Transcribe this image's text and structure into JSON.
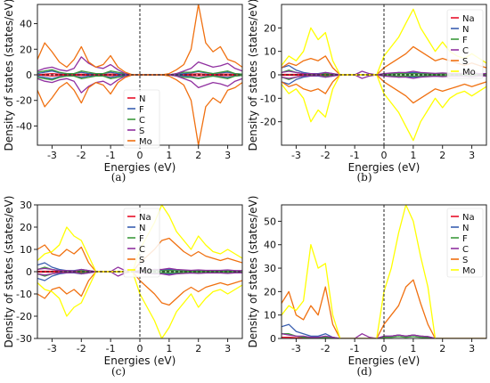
{
  "chart_data": [
    {
      "type": "line",
      "xlabel": "Energies (eV)",
      "ylabel": "Density of states (states/eV)",
      "xlim": [
        -3.5,
        3.5
      ],
      "ylim": [
        -55,
        55
      ],
      "xticks": [
        "-3",
        "-2",
        "-1",
        "0",
        "1",
        "2",
        "3"
      ],
      "yticks": [
        "40",
        "20",
        "0",
        "-20",
        "-40"
      ],
      "ytick_values": [
        40,
        20,
        0,
        -20,
        -40
      ],
      "legend_position": "lower-middle",
      "caption": "(a)",
      "x": [
        -3.5,
        -3.25,
        -3.0,
        -2.75,
        -2.5,
        -2.25,
        -2.0,
        -1.75,
        -1.5,
        -1.25,
        -1.0,
        -0.75,
        -0.5,
        -0.25,
        0.0,
        0.25,
        0.5,
        0.75,
        1.0,
        1.25,
        1.5,
        1.75,
        2.0,
        2.25,
        2.5,
        2.75,
        3.0,
        3.25,
        3.5
      ],
      "series": [
        {
          "name": "N",
          "color": "#e8102a",
          "up": [
            0,
            0.5,
            1,
            0.5,
            0.2,
            0.2,
            0.5,
            0.3,
            0.2,
            0.3,
            0.6,
            0.3,
            0.1,
            0,
            0,
            0,
            0,
            0,
            0,
            0.2,
            0.3,
            0.5,
            0.8,
            0.4,
            0.3,
            0.5,
            0.6,
            0.3,
            0.1
          ]
        },
        {
          "name": "F",
          "color": "#3a5fb0",
          "up": [
            1,
            2,
            3,
            1.5,
            1,
            1,
            2,
            1,
            1,
            1,
            2,
            1,
            0.5,
            0,
            0,
            0,
            0,
            0,
            0,
            0.5,
            1,
            1.5,
            2.5,
            1.5,
            1,
            1.5,
            2,
            1,
            0.5
          ]
        },
        {
          "name": "C",
          "color": "#3c9a3c",
          "up": [
            2,
            3,
            4,
            2,
            1,
            1,
            3,
            2,
            1,
            1,
            3,
            2,
            1,
            0,
            0,
            0,
            0,
            0,
            0,
            1,
            2,
            2,
            3,
            2,
            1,
            2,
            3,
            1,
            0.5
          ]
        },
        {
          "name": "S",
          "color": "#9030a0",
          "up": [
            3,
            5,
            6,
            4,
            3,
            5,
            14,
            9,
            6,
            5,
            8,
            4,
            1,
            0,
            0,
            0,
            0,
            0,
            0,
            1,
            3,
            5,
            10,
            8,
            6,
            7,
            9,
            5,
            3
          ]
        },
        {
          "name": "Mo",
          "color": "#f07010",
          "up": [
            12,
            25,
            18,
            10,
            6,
            12,
            22,
            10,
            6,
            8,
            15,
            6,
            2,
            0,
            0,
            0,
            0,
            0,
            1,
            4,
            8,
            20,
            55,
            25,
            18,
            22,
            12,
            10,
            6
          ]
        }
      ]
    },
    {
      "type": "line",
      "xlabel": "Energies (eV)",
      "ylabel": "Density of states (states/eV)",
      "xlim": [
        -3.5,
        3.5
      ],
      "ylim": [
        -30,
        30
      ],
      "xticks": [
        "-3",
        "-2",
        "-1",
        "0",
        "1",
        "2",
        "3"
      ],
      "yticks": [
        "20",
        "10",
        "0",
        "-10",
        "-20"
      ],
      "ytick_values": [
        20,
        10,
        0,
        -10,
        -20
      ],
      "legend_position": "top-right",
      "caption": "(b)",
      "x": [
        -3.5,
        -3.25,
        -3.0,
        -2.75,
        -2.5,
        -2.25,
        -2.0,
        -1.75,
        -1.5,
        -1.25,
        -1.0,
        -0.75,
        -0.5,
        -0.25,
        0.0,
        0.25,
        0.5,
        0.75,
        1.0,
        1.25,
        1.5,
        1.75,
        2.0,
        2.25,
        2.5,
        2.75,
        3.0,
        3.25,
        3.5
      ],
      "series": [
        {
          "name": "Na",
          "color": "#e8102a",
          "up": [
            0.2,
            0.2,
            0.2,
            0.2,
            0.1,
            0.1,
            0.1,
            0.1,
            0,
            0,
            0,
            0,
            0,
            0,
            0.3,
            0.5,
            0.8,
            0.6,
            0.8,
            0.6,
            0.5,
            0.5,
            0.5,
            0.4,
            0.4,
            0.4,
            0.3,
            0.3,
            0.3
          ]
        },
        {
          "name": "N",
          "color": "#3a5fb0",
          "up": [
            3,
            4,
            2,
            1,
            0.5,
            0.5,
            1,
            0.5,
            0,
            0,
            0,
            0,
            0,
            0,
            0.5,
            0.5,
            1,
            0.8,
            1,
            0.8,
            0.6,
            0.5,
            0.6,
            0.5,
            0.4,
            0.5,
            0.5,
            0.4,
            0.3
          ]
        },
        {
          "name": "F",
          "color": "#3c9a3c",
          "up": [
            1,
            2,
            1,
            0.5,
            0.3,
            0.3,
            0.5,
            0.3,
            0,
            0,
            0,
            0,
            0,
            0,
            0.3,
            0.3,
            0.5,
            0.4,
            0.5,
            0.4,
            0.3,
            0.3,
            0.3,
            0.3,
            0.2,
            0.3,
            0.3,
            0.2,
            0.2
          ]
        },
        {
          "name": "C",
          "color": "#9030a0",
          "up": [
            1,
            1.5,
            1,
            0.5,
            0.5,
            0.3,
            1,
            0.5,
            0,
            0,
            0,
            1.5,
            0.5,
            0,
            0.5,
            0.8,
            1,
            1,
            1.5,
            1,
            0.8,
            0.6,
            0.8,
            0.6,
            0.6,
            0.6,
            0.8,
            0.5,
            0.5
          ]
        },
        {
          "name": "S",
          "color": "#f07010",
          "up": [
            3,
            5,
            4,
            6,
            7,
            6,
            8,
            3,
            0,
            0,
            0,
            0,
            0,
            0,
            3,
            5,
            7,
            9,
            12,
            10,
            8,
            6,
            7,
            6,
            5,
            4,
            5,
            4,
            3
          ]
        },
        {
          "name": "Mo",
          "color": "#ffff00",
          "up": [
            4,
            8,
            6,
            10,
            20,
            15,
            18,
            6,
            0,
            0,
            0,
            0,
            0,
            0,
            8,
            12,
            16,
            22,
            28,
            20,
            15,
            10,
            14,
            10,
            8,
            7,
            9,
            7,
            5
          ]
        }
      ]
    },
    {
      "type": "line",
      "xlabel": "Energies (eV)",
      "ylabel": "Density of states (states/eV)",
      "xlim": [
        -3.5,
        3.5
      ],
      "ylim": [
        -30,
        30
      ],
      "xticks": [
        "-3",
        "-2",
        "-1",
        "0",
        "1",
        "2",
        "3"
      ],
      "yticks": [
        "30",
        "20",
        "10",
        "0",
        "-10",
        "-20",
        "-30"
      ],
      "ytick_values": [
        30,
        20,
        10,
        0,
        -10,
        -20,
        -30
      ],
      "legend_position": "top-middle",
      "caption": "(c)",
      "x": [
        -3.5,
        -3.25,
        -3.0,
        -2.75,
        -2.5,
        -2.25,
        -2.0,
        -1.75,
        -1.5,
        -1.25,
        -1.0,
        -0.75,
        -0.5,
        -0.25,
        0.0,
        0.25,
        0.5,
        0.75,
        1.0,
        1.25,
        1.5,
        1.75,
        2.0,
        2.25,
        2.5,
        2.75,
        3.0,
        3.25,
        3.5
      ],
      "series": [
        {
          "name": "Na",
          "color": "#e8102a",
          "up": [
            0.2,
            0.2,
            0.2,
            0.2,
            0.1,
            0.1,
            0.1,
            0,
            0,
            0,
            0,
            0,
            0,
            0,
            0.3,
            0.5,
            0.8,
            0.6,
            0.8,
            0.6,
            0.5,
            0.5,
            0.5,
            0.4,
            0.4,
            0.4,
            0.3,
            0.3,
            0.3
          ]
        },
        {
          "name": "N",
          "color": "#3a5fb0",
          "up": [
            3,
            4,
            2,
            1,
            0.5,
            0.5,
            1,
            0.5,
            0,
            0,
            0,
            0,
            0,
            0,
            0.5,
            0.5,
            1,
            0.8,
            1,
            0.8,
            0.6,
            0.5,
            0.6,
            0.5,
            0.4,
            0.5,
            0.5,
            0.4,
            0.3
          ]
        },
        {
          "name": "F",
          "color": "#3c9a3c",
          "up": [
            1,
            2,
            1,
            0.5,
            0.3,
            0.3,
            0.5,
            0.3,
            0,
            0,
            0,
            0,
            0,
            0,
            0.3,
            0.3,
            0.5,
            0.4,
            0.5,
            0.4,
            0.3,
            0.3,
            0.3,
            0.3,
            0.2,
            0.3,
            0.3,
            0.2,
            0.2
          ]
        },
        {
          "name": "C",
          "color": "#9030a0",
          "up": [
            1,
            1.5,
            1,
            0.5,
            0.5,
            0.3,
            1,
            0.5,
            0,
            0,
            0,
            2,
            0.5,
            0,
            0.5,
            0.8,
            1,
            1,
            1.5,
            1,
            0.8,
            0.6,
            0.8,
            0.6,
            0.6,
            0.6,
            0.8,
            0.5,
            0.5
          ]
        },
        {
          "name": "S",
          "color": "#f07010",
          "up": [
            10,
            12,
            8,
            7,
            10,
            8,
            11,
            4,
            0,
            0,
            0,
            0,
            0,
            0,
            4,
            7,
            10,
            14,
            15,
            12,
            9,
            7,
            9,
            7,
            6,
            5,
            6,
            5,
            4
          ]
        },
        {
          "name": "Mo",
          "color": "#ffff00",
          "up": [
            5,
            8,
            9,
            12,
            20,
            16,
            14,
            7,
            0,
            0,
            0,
            0,
            0,
            0,
            10,
            16,
            22,
            30,
            25,
            18,
            14,
            10,
            16,
            12,
            9,
            8,
            10,
            8,
            6
          ]
        }
      ]
    },
    {
      "type": "line",
      "xlabel": "Energies (eV)",
      "ylabel": "Density of states (states/eV)",
      "xlim": [
        -3.5,
        3.5
      ],
      "ylim": [
        0,
        57
      ],
      "xticks": [
        "-3",
        "-2",
        "-1",
        "0",
        "1",
        "2",
        "3"
      ],
      "yticks": [
        "50",
        "40",
        "30",
        "20",
        "10",
        "0"
      ],
      "ytick_values": [
        50,
        40,
        30,
        20,
        10,
        0
      ],
      "legend_position": "top-right",
      "caption": "(d)",
      "x": [
        -3.5,
        -3.25,
        -3.0,
        -2.75,
        -2.5,
        -2.25,
        -2.0,
        -1.75,
        -1.5,
        -1.25,
        -1.0,
        -0.75,
        -0.5,
        -0.25,
        0.0,
        0.25,
        0.5,
        0.75,
        1.0,
        1.25,
        1.5,
        1.75,
        2.0,
        2.25,
        2.5,
        2.75,
        3.0,
        3.25,
        3.5
      ],
      "series": [
        {
          "name": "Na",
          "color": "#e8102a",
          "up": [
            0.5,
            0.5,
            0.3,
            0.2,
            0.2,
            0.2,
            0.1,
            0,
            0,
            0,
            0,
            0,
            0,
            0,
            0.5,
            1,
            1.5,
            1,
            1.5,
            1,
            0.8,
            0,
            0,
            0,
            0,
            0,
            0,
            0,
            0
          ]
        },
        {
          "name": "N",
          "color": "#3a5fb0",
          "up": [
            5,
            6,
            3,
            2,
            1,
            1,
            2,
            0.5,
            0,
            0,
            0,
            0,
            0,
            0,
            1,
            1,
            1.5,
            1,
            1.5,
            1,
            0.8,
            0,
            0,
            0,
            0,
            0,
            0,
            0,
            0
          ]
        },
        {
          "name": "F",
          "color": "#3c9a3c",
          "up": [
            2,
            2,
            1,
            0.5,
            0.5,
            0.3,
            0.5,
            0.3,
            0,
            0,
            0,
            0,
            0,
            0,
            0.5,
            0.5,
            0.8,
            0.5,
            0.8,
            0.5,
            0.3,
            0,
            0,
            0,
            0,
            0,
            0,
            0,
            0
          ]
        },
        {
          "name": "C",
          "color": "#9030a0",
          "up": [
            2,
            1.5,
            1,
            1,
            0.5,
            0.5,
            1,
            0.5,
            0,
            0,
            0,
            2,
            0.5,
            0,
            1,
            1,
            1.5,
            1,
            1.5,
            1,
            0.8,
            0,
            0,
            0,
            0,
            0,
            0,
            0,
            0
          ]
        },
        {
          "name": "S",
          "color": "#f07010",
          "up": [
            15,
            20,
            10,
            8,
            14,
            10,
            22,
            6,
            0,
            0,
            0,
            0,
            0,
            0,
            6,
            10,
            14,
            22,
            25,
            15,
            6,
            0,
            0,
            0,
            0,
            0,
            0,
            0,
            0
          ]
        },
        {
          "name": "Mo",
          "color": "#ffff00",
          "up": [
            10,
            14,
            12,
            16,
            40,
            30,
            32,
            10,
            0,
            0,
            0,
            0,
            0,
            0,
            20,
            30,
            45,
            57,
            50,
            35,
            22,
            0,
            0,
            0,
            0,
            0,
            0,
            0,
            0
          ]
        }
      ]
    }
  ]
}
